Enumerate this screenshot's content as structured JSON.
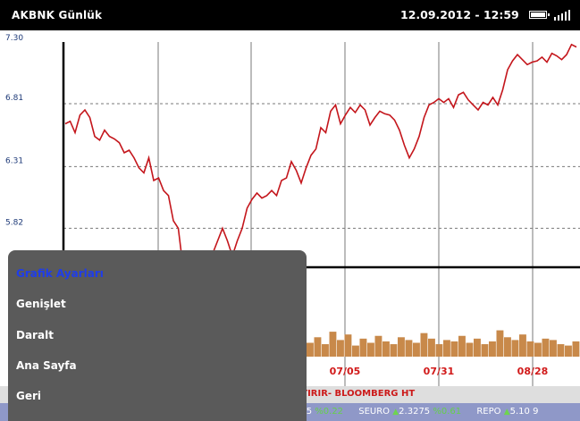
{
  "status_bar": {
    "title": "AKBNK Günlük",
    "datetime": "12.09.2012 - 12:59",
    "battery_icon": "battery-icon",
    "signal_icon": "signal-icon"
  },
  "chart_data": {
    "type": "line",
    "y_ticks": [
      "7.30",
      "6.81",
      "6.31",
      "5.82"
    ],
    "x_ticks": [
      "07/05",
      "07/31",
      "08/28"
    ],
    "ylim": [
      5.15,
      7.3
    ],
    "series": [
      {
        "values": [
          6.65,
          6.67,
          6.58,
          6.72,
          6.76,
          6.7,
          6.55,
          6.52,
          6.6,
          6.55,
          6.53,
          6.5,
          6.42,
          6.44,
          6.38,
          6.3,
          6.26,
          6.38,
          6.2,
          6.22,
          6.12,
          6.08,
          5.88,
          5.82,
          5.5,
          5.35,
          5.1,
          5.2,
          5.15,
          5.4,
          5.62,
          5.72,
          5.82,
          5.72,
          5.6,
          5.72,
          5.82,
          5.98,
          6.05,
          6.1,
          6.06,
          6.08,
          6.12,
          6.08,
          6.2,
          6.22,
          6.35,
          6.28,
          6.18,
          6.3,
          6.4,
          6.45,
          6.62,
          6.58,
          6.75,
          6.8,
          6.65,
          6.72,
          6.78,
          6.74,
          6.8,
          6.76,
          6.64,
          6.7,
          6.75,
          6.73,
          6.72,
          6.68,
          6.6,
          6.48,
          6.38,
          6.45,
          6.55,
          6.7,
          6.8,
          6.82,
          6.85,
          6.82,
          6.85,
          6.78,
          6.88,
          6.9,
          6.84,
          6.8,
          6.76,
          6.82,
          6.8,
          6.86,
          6.8,
          6.92,
          7.08,
          7.15,
          7.2,
          7.16,
          7.12,
          7.14,
          7.15,
          7.18,
          7.14,
          7.21,
          7.19,
          7.16,
          7.2,
          7.28,
          7.26
        ],
        "color": "#c4161c"
      }
    ],
    "volume": [
      10,
      14,
      9,
      18,
      12,
      16,
      8,
      13,
      10,
      15,
      11,
      9,
      14,
      12,
      10,
      17,
      13,
      9,
      12,
      11,
      15,
      10,
      13,
      9,
      11,
      19,
      14,
      12,
      16,
      11,
      10,
      13,
      12,
      9,
      8,
      11
    ],
    "volume_color": "#c8894a",
    "grid": true
  },
  "menu": {
    "items": [
      "Grafik Ayarları",
      "Genişlet",
      "Daralt",
      "Ana Sayfa",
      "Geri"
    ],
    "selected_color": "#1f3dea"
  },
  "ticker_news": {
    "text": "RTIRIR- BLOOMBERG HT"
  },
  "ticker_market": {
    "part1": "055",
    "part1_pct": "%0.22",
    "seuro_label": "SEURO",
    "seuro_value": "2.3275",
    "seuro_pct": "%0.61",
    "repo_label": "REPO",
    "repo_value": "5.10",
    "trailing": "9"
  }
}
